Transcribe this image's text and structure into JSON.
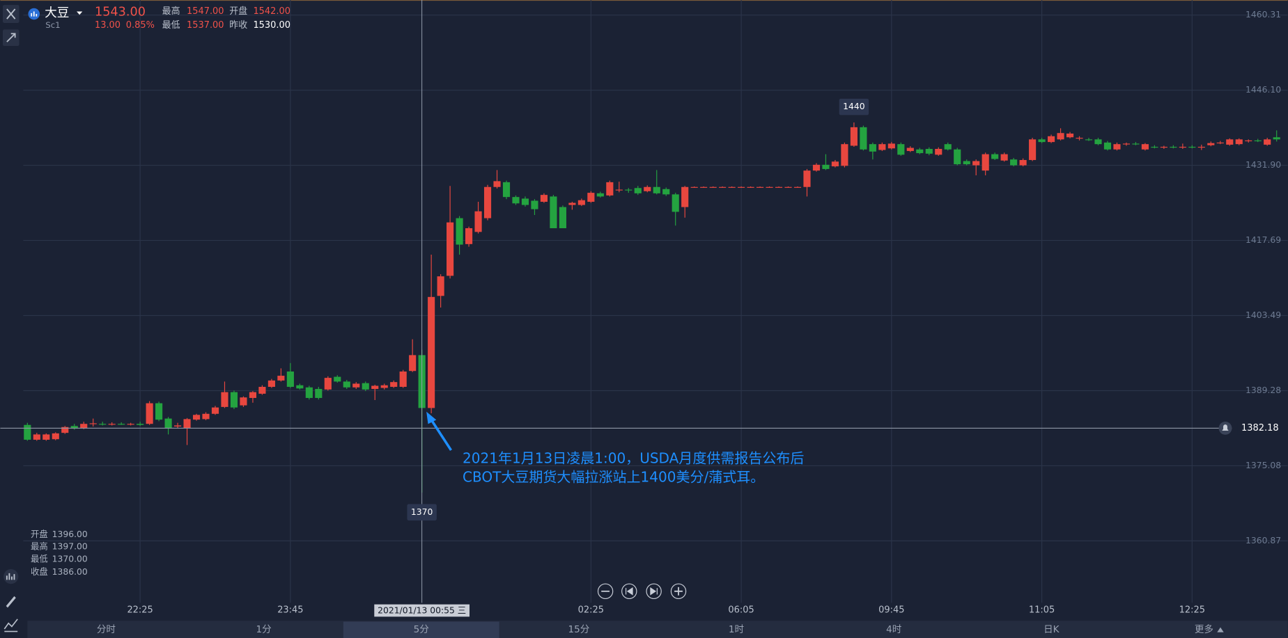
{
  "header": {
    "name": "大豆",
    "code": "Sc1",
    "price": "1543.00",
    "change": "13.00",
    "change_pct": "0.85%",
    "stats": [
      {
        "label": "最高",
        "value": "1547.00"
      },
      {
        "label": "开盘",
        "value": "1542.00"
      },
      {
        "label": "最低",
        "value": "1537.00"
      },
      {
        "label": "昨收",
        "value": "1530.00"
      }
    ]
  },
  "ohlc_panel": [
    {
      "label": "开盘",
      "value": "1396.00"
    },
    {
      "label": "最高",
      "value": "1397.00"
    },
    {
      "label": "最低",
      "value": "1370.00"
    },
    {
      "label": "收盘",
      "value": "1386.00"
    }
  ],
  "annotation": [
    "2021年1月13日凌晨1:00，USDA月度供需报告公布后",
    "CBOT大豆期货大幅拉涨站上1400美分/蒲式耳。"
  ],
  "tabs": [
    "分时",
    "1分",
    "5分",
    "15分",
    "1时",
    "4时",
    "日K",
    "更多"
  ],
  "selected_tab": 2,
  "chart_data": {
    "type": "candlestick",
    "up_color": "#e8473f",
    "down_color": "#24a340",
    "ylim": [
      1349.17,
      1463.16
    ],
    "yticks": [
      1460.31,
      {
        "value": 1446.1,
        "label": "1446.10"
      },
      {
        "value": 1431.9,
        "label": "1431.90"
      },
      1417.69,
      1403.49,
      1389.28,
      1375.08,
      1360.87
    ],
    "grid": true,
    "categories": [
      null,
      null,
      null,
      null,
      null,
      null,
      null,
      null,
      null,
      null,
      null,
      null,
      "22:25",
      null,
      null,
      null,
      null,
      null,
      null,
      null,
      null,
      null,
      null,
      null,
      null,
      null,
      null,
      null,
      "23:45",
      null,
      null,
      null,
      null,
      null,
      null,
      null,
      null,
      null,
      null,
      null,
      null,
      null,
      null,
      null,
      null,
      null,
      null,
      null,
      null,
      null,
      null,
      null,
      null,
      null,
      null,
      null,
      null,
      null,
      null,
      null,
      "02:25",
      null,
      null,
      null,
      null,
      null,
      null,
      null,
      null,
      null,
      null,
      null,
      null,
      null,
      null,
      null,
      "06:05",
      null,
      null,
      null,
      null,
      null,
      null,
      null,
      null,
      null,
      null,
      null,
      null,
      null,
      null,
      null,
      "09:45",
      null,
      null,
      null,
      null,
      null,
      null,
      null,
      null,
      null,
      null,
      null,
      null,
      null,
      null,
      null,
      "11:05",
      null,
      null,
      null,
      null,
      null,
      null,
      null,
      null,
      null,
      null,
      null,
      null,
      null,
      null,
      null,
      "12:25",
      null,
      null,
      null,
      null,
      null,
      null,
      null,
      null,
      null
    ],
    "open": [
      1382.8,
      1380.0,
      1380.0,
      1380.1,
      1381.3,
      1382.6,
      1382.2,
      1383.0,
      1383.0,
      1382.9,
      1383.0,
      1382.9,
      1383.0,
      1383.0,
      1386.9,
      1384.0,
      1382.5,
      1382.2,
      1383.8,
      1383.9,
      1384.9,
      1386.2,
      1389.0,
      1386.5,
      1387.9,
      1388.7,
      1390.0,
      1391.2,
      1392.9,
      1390.3,
      1389.9,
      1389.6,
      1389.5,
      1391.9,
      1391.0,
      1389.9,
      1390.7,
      1389.6,
      1389.8,
      1390.0,
      1390.0,
      1393.0,
      1396.0,
      1386.0,
      1407.2,
      1411.0,
      1421.9,
      1417.0,
      1419.3,
      1421.9,
      1427.8,
      1428.7,
      1425.9,
      1425.6,
      1425.2,
      1425.0,
      1426.0,
      1424.0,
      1424.4,
      1424.4,
      1425.0,
      1426.6,
      1426.2,
      1427.2,
      1427.3,
      1427.6,
      1427.0,
      1427.8,
      1427.4,
      1426.4,
      1424.0,
      1427.8,
      1427.8,
      1427.8,
      1427.8,
      1427.8,
      1427.8,
      1427.8,
      1427.8,
      1427.8,
      1427.8,
      1427.8,
      1427.8,
      1427.8,
      1430.9,
      1432.0,
      1431.7,
      1431.8,
      1435.6,
      1439.1,
      1435.9,
      1434.8,
      1435.1,
      1435.9,
      1434.6,
      1434.9,
      1435.0,
      1433.9,
      1435.9,
      1434.9,
      1432.7,
      1431.9,
      1430.9,
      1434.0,
      1432.8,
      1433.0,
      1431.9,
      1432.9,
      1436.8,
      1436.3,
      1436.8,
      1437.2,
      1437.0,
      1436.8,
      1436.8,
      1436.2,
      1434.9,
      1435.9,
      1436.0,
      1434.9,
      1435.4,
      1435.3,
      1435.4,
      1435.3,
      1435.4,
      1435.3,
      1435.7,
      1436.1,
      1435.8,
      1435.9,
      1436.5,
      1436.6,
      1435.8,
      1437.2
    ],
    "high": [
      1383.2,
      1381.3,
      1381.2,
      1381.4,
      1382.6,
      1383.0,
      1383.4,
      1384.0,
      1383.4,
      1383.3,
      1383.3,
      1383.2,
      1383.4,
      1387.3,
      1387.2,
      1384.3,
      1383.2,
      1384.1,
      1384.9,
      1385.2,
      1386.4,
      1391.0,
      1389.3,
      1388.2,
      1389.2,
      1390.3,
      1391.5,
      1393.5,
      1394.5,
      1390.6,
      1390.2,
      1390.0,
      1392.0,
      1392.2,
      1391.3,
      1390.9,
      1391.0,
      1390.4,
      1390.6,
      1391.2,
      1393.2,
      1399.0,
      1397.0,
      1415.0,
      1411.3,
      1428.0,
      1422.3,
      1420.3,
      1425.0,
      1428.2,
      1431.0,
      1429.0,
      1426.2,
      1426.0,
      1425.5,
      1426.6,
      1426.3,
      1424.3,
      1425.0,
      1425.6,
      1427.0,
      1426.9,
      1429.0,
      1428.8,
      1427.6,
      1428.0,
      1428.1,
      1431.0,
      1427.7,
      1426.7,
      1428.0,
      1427.9,
      1427.9,
      1427.9,
      1427.9,
      1427.9,
      1427.9,
      1427.9,
      1427.9,
      1427.9,
      1427.9,
      1427.9,
      1427.9,
      1431.2,
      1432.3,
      1434.0,
      1432.9,
      1436.2,
      1440.0,
      1439.4,
      1436.2,
      1436.2,
      1436.3,
      1436.2,
      1435.5,
      1435.2,
      1435.3,
      1435.3,
      1436.2,
      1435.2,
      1433.0,
      1433.0,
      1434.3,
      1434.3,
      1434.3,
      1433.3,
      1433.2,
      1437.1,
      1437.1,
      1437.7,
      1438.9,
      1438.2,
      1437.4,
      1437.1,
      1437.1,
      1436.5,
      1436.2,
      1436.2,
      1436.3,
      1436.1,
      1435.7,
      1435.6,
      1435.7,
      1436.0,
      1435.7,
      1435.8,
      1436.4,
      1436.5,
      1437.0,
      1437.0,
      1436.8,
      1436.9,
      1437.1,
      1438.5
    ],
    "low": [
      1379.8,
      1379.8,
      1379.8,
      1379.9,
      1381.1,
      1381.9,
      1382.0,
      1382.5,
      1382.7,
      1382.7,
      1382.8,
      1382.7,
      1382.6,
      1382.8,
      1383.5,
      1381.0,
      1382.2,
      1379.0,
      1383.6,
      1383.7,
      1384.7,
      1386.0,
      1385.8,
      1386.2,
      1387.0,
      1388.5,
      1389.8,
      1391.0,
      1389.8,
      1389.5,
      1387.6,
      1387.6,
      1389.3,
      1390.8,
      1389.6,
      1389.6,
      1389.2,
      1387.5,
      1389.5,
      1389.8,
      1389.8,
      1392.8,
      1370.0,
      1385.0,
      1405.0,
      1410.5,
      1415.0,
      1416.5,
      1419.0,
      1421.5,
      1427.5,
      1425.5,
      1424.4,
      1424.1,
      1422.5,
      1424.8,
      1420.0,
      1420.0,
      1423.5,
      1424.2,
      1424.8,
      1425.8,
      1426.0,
      1426.8,
      1426.7,
      1426.3,
      1426.8,
      1426.4,
      1426.1,
      1420.5,
      1422.0,
      1427.7,
      1427.7,
      1427.7,
      1427.7,
      1427.7,
      1427.7,
      1427.7,
      1427.7,
      1427.7,
      1427.7,
      1427.7,
      1427.7,
      1426.0,
      1430.7,
      1431.0,
      1431.5,
      1431.5,
      1435.4,
      1434.7,
      1433.0,
      1434.6,
      1434.9,
      1433.7,
      1434.4,
      1434.0,
      1433.8,
      1433.7,
      1434.7,
      1431.9,
      1431.9,
      1430.0,
      1430.0,
      1432.9,
      1432.6,
      1431.7,
      1431.7,
      1432.7,
      1436.1,
      1436.1,
      1436.6,
      1437.0,
      1436.6,
      1436.5,
      1435.7,
      1434.7,
      1434.7,
      1435.6,
      1435.7,
      1434.7,
      1435.1,
      1435.0,
      1435.1,
      1435.0,
      1435.1,
      1434.8,
      1435.5,
      1435.9,
      1435.6,
      1435.7,
      1436.2,
      1436.3,
      1435.6,
      1436.4
    ],
    "close": [
      1380.0,
      1381.0,
      1381.0,
      1381.2,
      1382.4,
      1382.1,
      1383.0,
      1383.1,
      1382.9,
      1383.0,
      1382.9,
      1383.0,
      1382.8,
      1386.9,
      1383.8,
      1382.2,
      1382.7,
      1383.9,
      1384.7,
      1384.9,
      1386.1,
      1389.0,
      1386.1,
      1388.0,
      1389.0,
      1390.0,
      1391.2,
      1392.1,
      1390.0,
      1389.7,
      1387.9,
      1387.9,
      1391.7,
      1391.0,
      1389.9,
      1390.6,
      1389.5,
      1390.2,
      1390.3,
      1390.9,
      1392.9,
      1396.0,
      1386.0,
      1407.0,
      1410.9,
      1421.1,
      1416.9,
      1420.0,
      1423.2,
      1427.8,
      1428.9,
      1425.9,
      1424.7,
      1424.4,
      1423.6,
      1426.3,
      1420.0,
      1420.0,
      1424.8,
      1425.3,
      1426.7,
      1426.0,
      1428.7,
      1427.3,
      1427.2,
      1426.6,
      1427.8,
      1426.6,
      1426.4,
      1423.1,
      1427.8,
      1427.8,
      1427.8,
      1427.8,
      1427.8,
      1427.8,
      1427.8,
      1427.8,
      1427.8,
      1427.8,
      1427.8,
      1427.8,
      1427.8,
      1430.9,
      1432.0,
      1431.2,
      1432.6,
      1435.9,
      1439.1,
      1434.9,
      1434.5,
      1435.9,
      1436.0,
      1433.9,
      1435.2,
      1434.2,
      1434.1,
      1435.0,
      1434.9,
      1432.1,
      1432.1,
      1432.7,
      1434.0,
      1433.1,
      1434.0,
      1431.9,
      1432.9,
      1436.8,
      1436.3,
      1437.4,
      1438.0,
      1437.9,
      1437.1,
      1436.7,
      1435.9,
      1434.9,
      1435.9,
      1436.0,
      1435.9,
      1435.9,
      1435.3,
      1435.4,
      1435.3,
      1435.4,
      1435.3,
      1435.4,
      1436.1,
      1436.2,
      1436.8,
      1436.8,
      1436.6,
      1436.5,
      1436.8,
      1436.8
    ],
    "crosshair": {
      "index": 42,
      "x_label": "2021/01/13 00:55 三"
    },
    "alert_line": 1382.18,
    "high_marker": {
      "index": 88,
      "value": 1440
    },
    "low_marker": {
      "index": 42,
      "value": 1370
    }
  }
}
